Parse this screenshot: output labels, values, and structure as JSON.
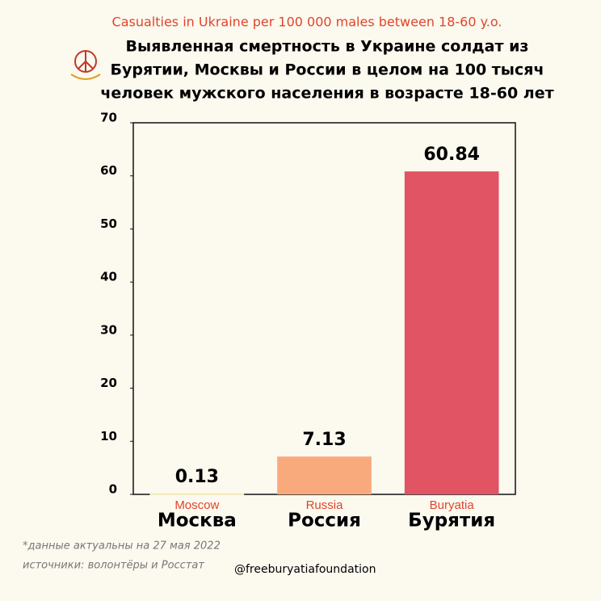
{
  "chart_data": {
    "type": "bar",
    "title": "Casualties in Ukraine per 100 000 males between 18-60 y.o.",
    "subtitle": [
      "Выявленная смертность в Украине солдат из",
      "Бурятии, Москвы и России в целом на 100 тысяч",
      "человек мужского населения в возрасте 18-60 лет"
    ],
    "categories": [
      "Moscow",
      "Russia",
      "Buryatia"
    ],
    "categories_ru": [
      "Москва",
      "Россия",
      "Бурятия"
    ],
    "values": [
      0.13,
      7.13,
      60.84
    ],
    "colors": [
      "#fbf3c2",
      "#f9aa7c",
      "#e05464"
    ],
    "ylim": [
      0,
      70
    ],
    "yticks": [
      0,
      10,
      20,
      30,
      40,
      50,
      60,
      70
    ],
    "grid": false,
    "notes": [
      "*данные актуальны на 27 мая 2022",
      "источники: волонтёры и Росстат"
    ],
    "handle": "@freeburyatiafoundation"
  }
}
